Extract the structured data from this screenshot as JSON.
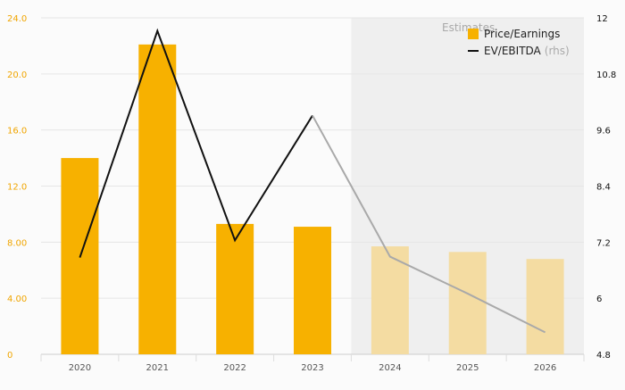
{
  "chart_data": {
    "type": "bar",
    "categories": [
      "2020",
      "2021",
      "2022",
      "2023",
      "2024",
      "2025",
      "2026"
    ],
    "estimate_from_index": 4,
    "estimate_label": "Estimates",
    "series": [
      {
        "name": "Price/Earnings",
        "kind": "bar",
        "axis": "left",
        "values": [
          14.0,
          22.1,
          9.3,
          9.1,
          7.7,
          7.3,
          6.8
        ]
      },
      {
        "name": "EV/EBITDA",
        "kind": "line",
        "axis": "right",
        "legend_suffix": "(rhs)",
        "values": [
          6.87,
          11.72,
          7.24,
          9.91,
          6.89,
          6.1,
          5.27
        ]
      }
    ],
    "y_left": {
      "min": 0,
      "max": 24,
      "ticks": [
        "0",
        "4.00",
        "8.00",
        "12.0",
        "16.0",
        "20.0",
        "24.0"
      ]
    },
    "y_right": {
      "min": 4.8,
      "max": 12,
      "ticks": [
        "4.8",
        "6",
        "7.2",
        "8.4",
        "9.6",
        "10.8",
        "12"
      ]
    },
    "grid": true,
    "legend_position": "top-right",
    "colors": {
      "bar": "#f7b100",
      "bar_estimate": "#f4dca2",
      "line": "#111111",
      "line_estimate": "#a9a9a9",
      "estimate_bg": "#efefef",
      "left_tick": "#f0a500",
      "right_tick": "#111111",
      "grid": "#e6e6e6",
      "x_tick": "#555555"
    }
  }
}
